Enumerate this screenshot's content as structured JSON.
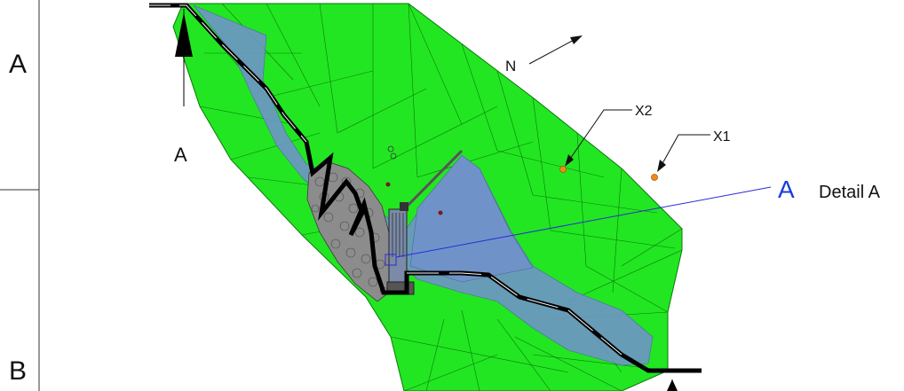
{
  "labels": {
    "row_a": "A",
    "row_b": "B",
    "section_a": "A",
    "north": "N",
    "x1": "X1",
    "x2": "X2",
    "detail_letter": "A",
    "detail_text": "Detail A"
  },
  "colors": {
    "terrain": "#22e622",
    "terrain_edge": "#0a7a0a",
    "water": "#6f93c8",
    "rock": "#8c8c8c",
    "detail_line": "#2a2ad6",
    "detail_letter": "#1a3ce0",
    "point_marker": "#f08a1a",
    "section_line": "#000000"
  },
  "icons": {
    "section_arrow": "section-cut-arrow-icon",
    "north_arrow": "north-arrow-icon",
    "survey_point": "survey-point-icon"
  }
}
